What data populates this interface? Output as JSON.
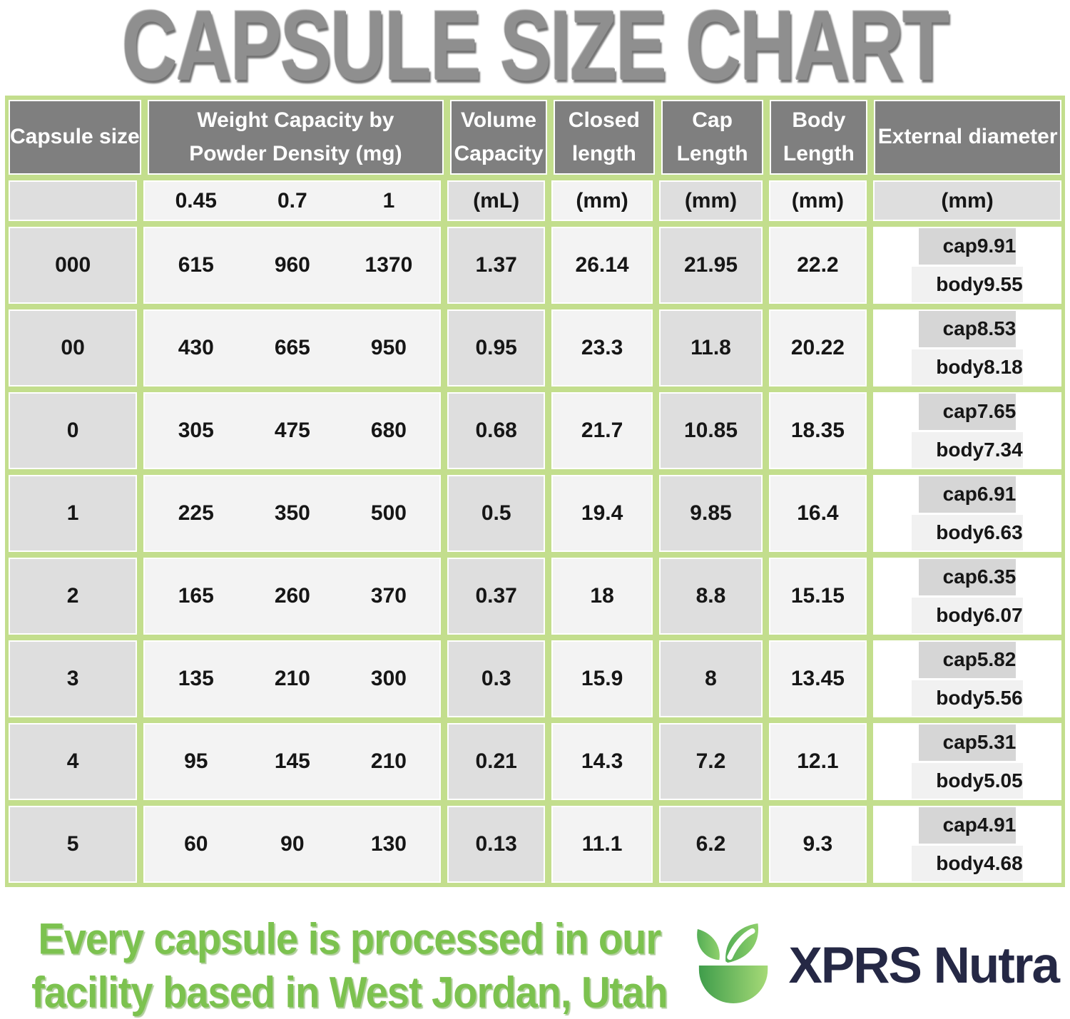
{
  "title": "CAPSULE SIZE CHART",
  "chart_data": {
    "type": "table",
    "title": "CAPSULE SIZE CHART",
    "columns": [
      "Capsule size",
      "Weight capacity at powder density 0.45 (mg)",
      "Weight capacity at powder density 0.7 (mg)",
      "Weight capacity at powder density 1 (mg)",
      "Volume capacity (mL)",
      "Closed length (mm)",
      "Cap length (mm)",
      "Body length (mm)",
      "External diameter cap (mm)",
      "External diameter body (mm)"
    ],
    "rows": [
      [
        "000",
        "615",
        "960",
        "1370",
        "1.37",
        "26.14",
        "21.95",
        "22.2",
        "9.91",
        "9.55"
      ],
      [
        "00",
        "430",
        "665",
        "950",
        "0.95",
        "23.3",
        "11.8",
        "20.22",
        "8.53",
        "8.18"
      ],
      [
        "0",
        "305",
        "475",
        "680",
        "0.68",
        "21.7",
        "10.85",
        "18.35",
        "7.65",
        "7.34"
      ],
      [
        "1",
        "225",
        "350",
        "500",
        "0.5",
        "19.4",
        "9.85",
        "16.4",
        "6.91",
        "6.63"
      ],
      [
        "2",
        "165",
        "260",
        "370",
        "0.37",
        "18",
        "8.8",
        "15.15",
        "6.35",
        "6.07"
      ],
      [
        "3",
        "135",
        "210",
        "300",
        "0.3",
        "15.9",
        "8",
        "13.45",
        "5.82",
        "5.56"
      ],
      [
        "4",
        "95",
        "145",
        "210",
        "0.21",
        "14.3",
        "7.2",
        "12.1",
        "5.31",
        "5.05"
      ],
      [
        "5",
        "60",
        "90",
        "130",
        "0.13",
        "11.1",
        "6.2",
        "9.3",
        "4.91",
        "4.68"
      ]
    ]
  },
  "table": {
    "headers": {
      "capsule_size": "Capsule size",
      "weight": "Weight Capacity by Powder Density (mg)",
      "volume": "Volume Capacity",
      "closed": "Closed length",
      "cap": "Cap Length",
      "body": "Body Length",
      "external": "External diameter"
    },
    "units": {
      "densities": [
        "0.45",
        "0.7",
        "1"
      ],
      "volume": "(mL)",
      "closed": "(mm)",
      "cap": "(mm)",
      "body": "(mm)",
      "external": "(mm)"
    },
    "external_labels": {
      "cap": "cap",
      "body": "body"
    }
  },
  "footer": {
    "line1": "Every capsule is processed in our",
    "line2": "facility based in West Jordan, Utah",
    "brand": "XPRS Nutra"
  },
  "colors": {
    "border_green": "#c3de8d",
    "header_gray": "#7f7f7f",
    "cell_gray": "#dedede",
    "cell_light": "#f3f3f3",
    "title_gray": "#8f8f8f",
    "footer_green": "#7cc24f",
    "brand_navy": "#252845"
  }
}
